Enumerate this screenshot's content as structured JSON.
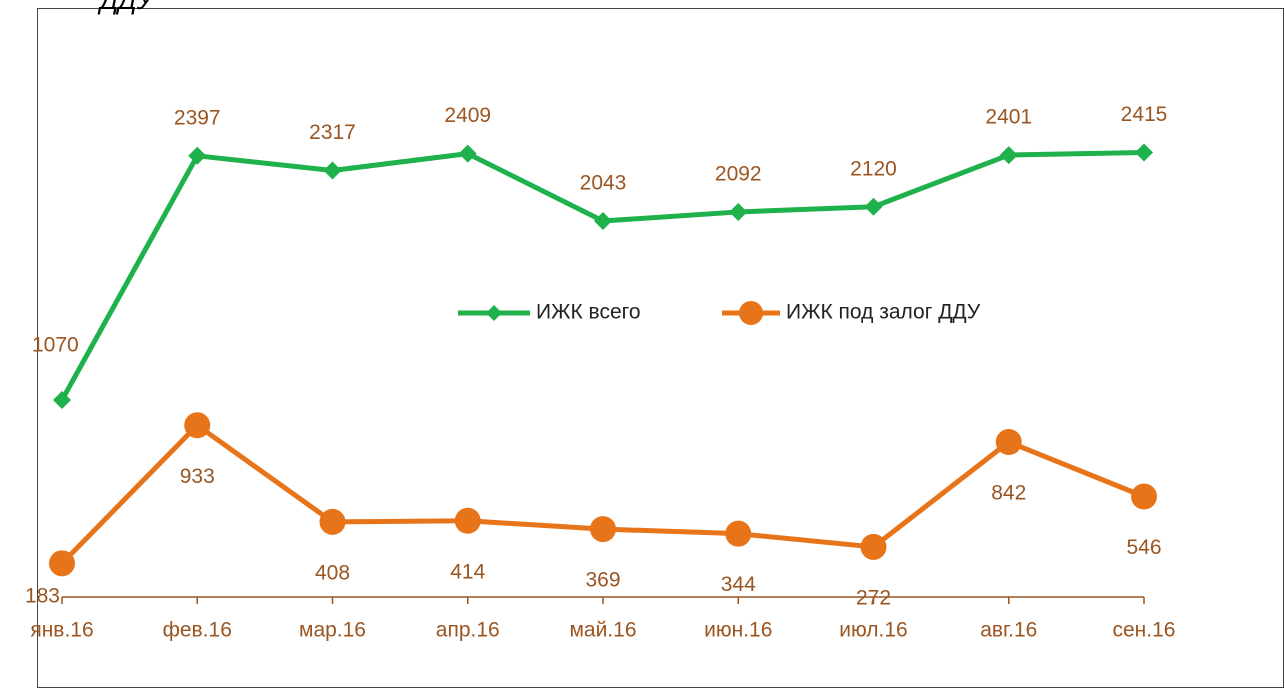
{
  "chart_data": {
    "type": "line",
    "title": "ДДУ",
    "categories": [
      "янв.16",
      "фев.16",
      "мар.16",
      "апр.16",
      "май.16",
      "июн.16",
      "июл.16",
      "авг.16",
      "сен.16"
    ],
    "series": [
      {
        "name": "ИЖК всего",
        "color": "#1fb14b",
        "marker": "diamond",
        "values": [
          1070,
          2397,
          2317,
          2409,
          2043,
          2092,
          2120,
          2401,
          2415
        ]
      },
      {
        "name": "ИЖК под залог ДДУ",
        "color": "#e8741a",
        "marker": "circle",
        "values": [
          183,
          933,
          408,
          414,
          369,
          344,
          272,
          842,
          546
        ]
      }
    ],
    "ylim": [
      0,
      3200
    ],
    "label_color": "#9a5520",
    "legend": "center"
  }
}
